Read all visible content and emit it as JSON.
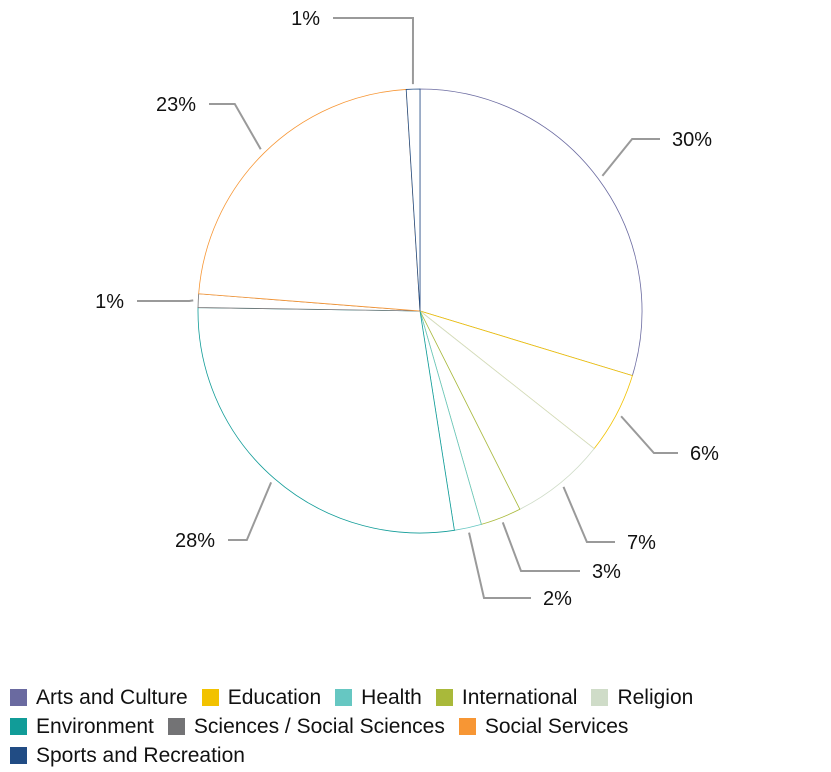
{
  "chart_data": {
    "type": "pie",
    "title": "",
    "slices": [
      {
        "category": "Arts and Culture",
        "value": 30,
        "label": "30%",
        "color": "#6a6aa0"
      },
      {
        "category": "Education",
        "value": 6,
        "label": "6%",
        "color": "#f2c200"
      },
      {
        "category": "Religion",
        "value": 7,
        "label": "7%",
        "color": "#cfdcc8"
      },
      {
        "category": "International",
        "value": 3,
        "label": "3%",
        "color": "#a9b93a"
      },
      {
        "category": "Health",
        "value": 2,
        "label": "2%",
        "color": "#66c7c2"
      },
      {
        "category": "Environment",
        "value": 28,
        "label": "28%",
        "color": "#119c98"
      },
      {
        "category": "Sciences / Social Sciences",
        "value": 1,
        "label": "1%",
        "color": "#737375"
      },
      {
        "category": "Social Services",
        "value": 23,
        "label": "23%",
        "color": "#f79634"
      },
      {
        "category": "Sports and Recreation",
        "value": 1,
        "label": "1%",
        "color": "#214c84"
      }
    ],
    "legend_placement": "bottom",
    "legend_rows": [
      [
        "Arts and Culture",
        "Education",
        "Health",
        "International",
        "Religion"
      ],
      [
        "Environment",
        "Sciences / Social Sciences",
        "Social Services"
      ],
      [
        "Sports and Recreation"
      ]
    ]
  }
}
